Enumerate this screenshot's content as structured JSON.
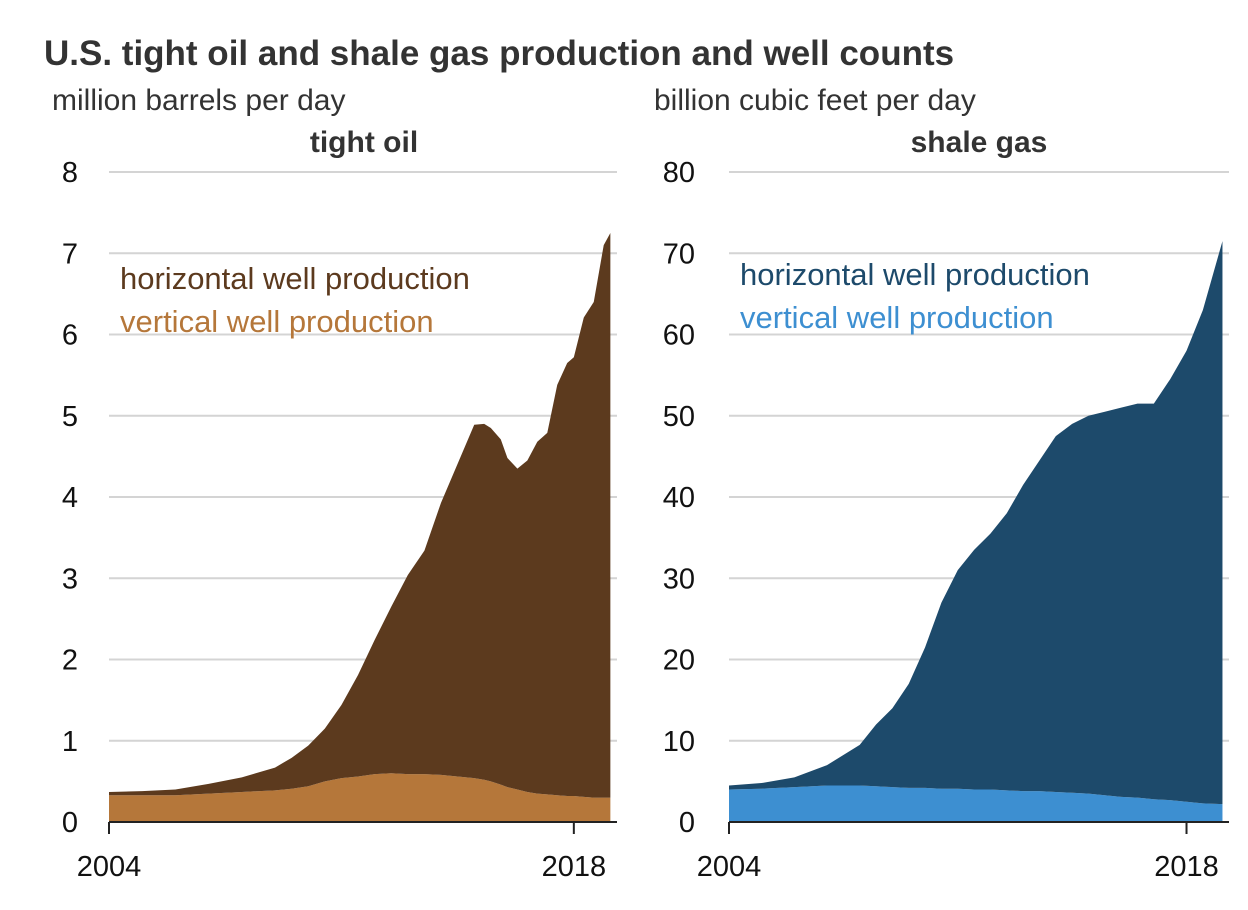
{
  "title": "U.S. tight oil and shale gas production and well counts",
  "chart_data": [
    {
      "type": "area",
      "stacked": true,
      "panel_title": "tight oil",
      "ylabel": "million barrels per day",
      "ylim": [
        0,
        8
      ],
      "yticks": [
        "0",
        "1",
        "2",
        "3",
        "4",
        "5",
        "6",
        "7",
        "8"
      ],
      "xlim": [
        2004,
        2019.3
      ],
      "xticks": [
        "2004",
        "2018"
      ],
      "grid": true,
      "legend_position": "top-left",
      "x": [
        2004.0,
        2005.0,
        2006.0,
        2007.0,
        2008.0,
        2009.0,
        2009.5,
        2010.0,
        2010.5,
        2011.0,
        2011.5,
        2012.0,
        2012.5,
        2013.0,
        2013.5,
        2014.0,
        2014.5,
        2015.0,
        2015.3,
        2015.5,
        2015.8,
        2016.0,
        2016.3,
        2016.6,
        2016.9,
        2017.2,
        2017.5,
        2017.8,
        2018.0,
        2018.3,
        2018.6,
        2018.9,
        2019.1
      ],
      "series": [
        {
          "name": "vertical well production",
          "color": "#b5773a",
          "values": [
            0.33,
            0.33,
            0.33,
            0.35,
            0.37,
            0.39,
            0.41,
            0.44,
            0.5,
            0.54,
            0.56,
            0.59,
            0.6,
            0.59,
            0.59,
            0.58,
            0.56,
            0.54,
            0.52,
            0.5,
            0.46,
            0.43,
            0.4,
            0.37,
            0.35,
            0.34,
            0.33,
            0.32,
            0.32,
            0.31,
            0.3,
            0.3,
            0.3
          ]
        },
        {
          "name": "horizontal well production",
          "color": "#5c3a1e",
          "values": [
            0.04,
            0.05,
            0.07,
            0.12,
            0.18,
            0.28,
            0.38,
            0.5,
            0.65,
            0.9,
            1.25,
            1.65,
            2.05,
            2.45,
            2.75,
            3.35,
            3.85,
            4.35,
            4.38,
            4.35,
            4.25,
            4.05,
            3.95,
            4.08,
            4.33,
            4.45,
            5.05,
            5.33,
            5.4,
            5.9,
            6.1,
            6.8,
            6.95
          ]
        }
      ]
    },
    {
      "type": "area",
      "stacked": true,
      "panel_title": "shale gas",
      "ylabel": "billion cubic feet per day",
      "ylim": [
        0,
        80
      ],
      "yticks": [
        "0",
        "10",
        "20",
        "30",
        "40",
        "50",
        "60",
        "70",
        "80"
      ],
      "xlim": [
        2004,
        2019.3
      ],
      "xticks": [
        "2004",
        "2018"
      ],
      "grid": true,
      "legend_position": "top-left",
      "x": [
        2004.0,
        2005.0,
        2006.0,
        2007.0,
        2008.0,
        2008.5,
        2009.0,
        2009.5,
        2010.0,
        2010.5,
        2011.0,
        2011.5,
        2012.0,
        2012.5,
        2013.0,
        2013.5,
        2014.0,
        2014.5,
        2015.0,
        2015.5,
        2016.0,
        2016.5,
        2017.0,
        2017.5,
        2018.0,
        2018.5,
        2019.1
      ],
      "series": [
        {
          "name": "vertical well production",
          "color": "#3d8fd1",
          "values": [
            4.0,
            4.1,
            4.3,
            4.5,
            4.5,
            4.4,
            4.3,
            4.2,
            4.2,
            4.1,
            4.1,
            4.0,
            4.0,
            3.9,
            3.8,
            3.8,
            3.7,
            3.6,
            3.5,
            3.3,
            3.1,
            3.0,
            2.8,
            2.7,
            2.5,
            2.3,
            2.2
          ]
        },
        {
          "name": "horizontal well production",
          "color": "#1d4a6b",
          "values": [
            0.5,
            0.7,
            1.2,
            2.5,
            5.0,
            7.6,
            9.7,
            12.8,
            17.3,
            22.9,
            26.9,
            29.5,
            31.5,
            34.1,
            37.7,
            40.7,
            43.8,
            45.4,
            46.5,
            47.2,
            47.9,
            48.5,
            48.7,
            51.8,
            55.5,
            60.7,
            69.3
          ]
        }
      ]
    }
  ]
}
